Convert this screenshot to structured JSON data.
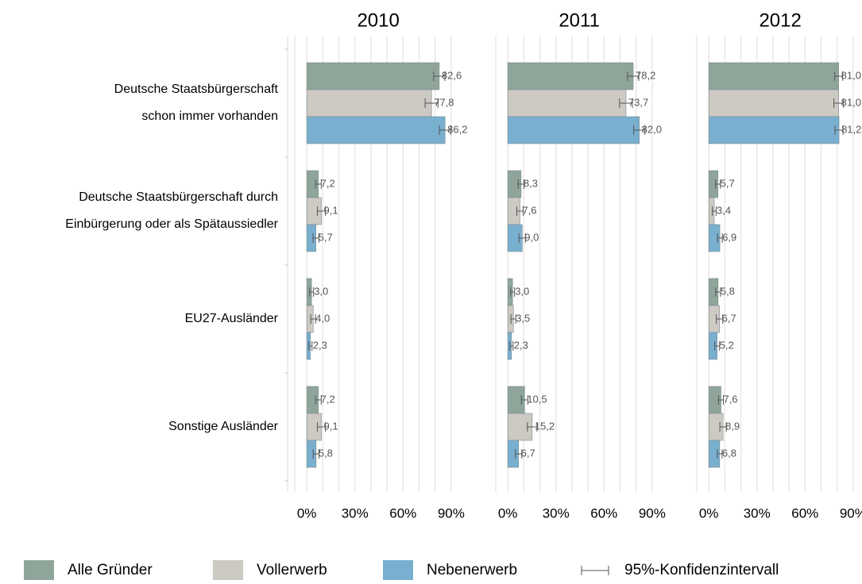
{
  "chart_data": [
    {
      "type": "hbar",
      "title": "2010",
      "categories": [
        [
          "Deutsche Staatsbürgerschaft",
          "schon immer vorhanden"
        ],
        [
          "Deutsche Staatsbürgerschaft durch",
          "Einbürgerung oder als Spätaussiedler"
        ],
        [
          "EU27-Ausländer"
        ],
        [
          "Sonstige Ausländer"
        ]
      ],
      "ci_label": "95%-Konfidenzintervall",
      "series": [
        {
          "name": "Alle Gründer",
          "color": "#8fa59a",
          "values": [
            82.6,
            7.2,
            3.0,
            7.2
          ],
          "value_labels": [
            "82,6",
            "7,2",
            "3,0",
            "7,2"
          ],
          "errors": [
            3.5,
            1.8,
            1.2,
            1.8
          ]
        },
        {
          "name": "Vollerwerb",
          "color": "#cdc9c3",
          "values": [
            77.8,
            9.1,
            4.0,
            9.1
          ],
          "value_labels": [
            "77,8",
            "9,1",
            "4,0",
            "9,1"
          ],
          "errors": [
            4.0,
            2.5,
            1.5,
            2.5
          ]
        },
        {
          "name": "Nebenerwerb",
          "color": "#79afcf",
          "values": [
            86.2,
            5.7,
            2.3,
            5.8
          ],
          "value_labels": [
            "86,2",
            "5,7",
            "2,3",
            "5,8"
          ],
          "errors": [
            3.5,
            1.8,
            1.0,
            1.8
          ]
        }
      ],
      "xlim": [
        -7.5,
        99
      ],
      "xticks": [
        {
          "value": 0,
          "label": "0%"
        },
        {
          "value": 30,
          "label": "30%"
        },
        {
          "value": 60,
          "label": "60%"
        },
        {
          "value": 90,
          "label": "90%"
        }
      ],
      "minor_xticks": [
        10,
        20,
        40,
        50,
        70,
        80
      ],
      "grid": true
    },
    {
      "type": "hbar",
      "title": "2011",
      "series": [
        {
          "color": "#8fa59a",
          "values": [
            78.2,
            8.3,
            3.0,
            10.5
          ],
          "value_labels": [
            "78,2",
            "8,3",
            "3,0",
            "10,5"
          ],
          "errors": [
            3.5,
            1.8,
            1.2,
            2.0
          ]
        },
        {
          "color": "#cdc9c3",
          "values": [
            73.7,
            7.6,
            3.5,
            15.2
          ],
          "value_labels": [
            "73,7",
            "7,6",
            "3,5",
            "15,2"
          ],
          "errors": [
            4.0,
            2.0,
            1.5,
            3.0
          ]
        },
        {
          "color": "#79afcf",
          "values": [
            82.0,
            9.0,
            2.3,
            6.7
          ],
          "value_labels": [
            "82,0",
            "9,0",
            "2,3",
            "6,7"
          ],
          "errors": [
            3.5,
            2.0,
            1.0,
            2.0
          ]
        }
      ],
      "xlim": [
        -7.5,
        99
      ],
      "xticks": [
        {
          "value": 0,
          "label": "0%"
        },
        {
          "value": 30,
          "label": "30%"
        },
        {
          "value": 60,
          "label": "60%"
        },
        {
          "value": 90,
          "label": "90%"
        }
      ],
      "minor_xticks": [
        10,
        20,
        40,
        50,
        70,
        80
      ],
      "grid": true
    },
    {
      "type": "hbar",
      "title": "2012",
      "series": [
        {
          "color": "#8fa59a",
          "values": [
            81.0,
            5.7,
            5.8,
            7.6
          ],
          "value_labels": [
            "81,0",
            "5,7",
            "5,8",
            "7,6"
          ],
          "errors": [
            2.5,
            1.5,
            1.5,
            1.5
          ]
        },
        {
          "color": "#cdc9c3",
          "values": [
            81.0,
            3.4,
            6.7,
            8.9
          ],
          "value_labels": [
            "81,0",
            "3,4",
            "6,7",
            "8,9"
          ],
          "errors": [
            3.0,
            1.2,
            2.0,
            2.0
          ]
        },
        {
          "color": "#79afcf",
          "values": [
            81.2,
            6.9,
            5.2,
            6.8
          ],
          "value_labels": [
            "81,2",
            "6,9",
            "5,2",
            "6,8"
          ],
          "errors": [
            2.5,
            1.5,
            1.5,
            1.5
          ]
        }
      ],
      "xlim": [
        -7.5,
        99
      ],
      "xticks": [
        {
          "value": 0,
          "label": "0%"
        },
        {
          "value": 30,
          "label": "30%"
        },
        {
          "value": 60,
          "label": "60%"
        },
        {
          "value": 90,
          "label": "90%"
        }
      ],
      "minor_xticks": [
        10,
        20,
        40,
        50,
        70,
        80
      ],
      "grid": true
    }
  ]
}
